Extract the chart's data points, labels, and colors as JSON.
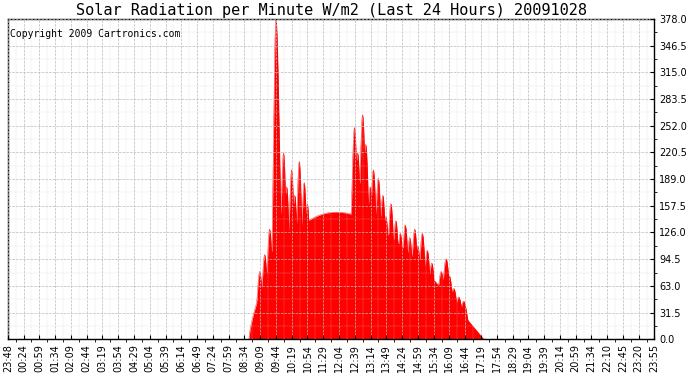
{
  "title": "Solar Radiation per Minute W/m2 (Last 24 Hours) 20091028",
  "copyright": "Copyright 2009 Cartronics.com",
  "fill_color": "#FF0000",
  "line_color": "#FF0000",
  "background_color": "#FFFFFF",
  "ymin": 0.0,
  "ymax": 378.0,
  "yticks": [
    0.0,
    31.5,
    63.0,
    94.5,
    126.0,
    157.5,
    189.0,
    220.5,
    252.0,
    283.5,
    315.0,
    346.5,
    378.0
  ],
  "x_labels": [
    "23:48",
    "00:24",
    "00:59",
    "01:34",
    "02:09",
    "02:44",
    "03:19",
    "03:54",
    "04:29",
    "05:04",
    "05:39",
    "06:14",
    "06:49",
    "07:24",
    "07:59",
    "08:34",
    "09:09",
    "09:44",
    "10:19",
    "10:54",
    "11:29",
    "12:04",
    "12:39",
    "13:14",
    "13:49",
    "14:24",
    "14:59",
    "15:34",
    "16:09",
    "16:44",
    "17:19",
    "17:54",
    "18:29",
    "19:04",
    "19:39",
    "20:14",
    "20:59",
    "21:34",
    "22:10",
    "22:45",
    "23:20",
    "23:55"
  ],
  "n_points": 1440,
  "baseline_dashed_color": "#FF0000",
  "title_fontsize": 11,
  "tick_fontsize": 7,
  "copyright_fontsize": 7,
  "figwidth": 6.9,
  "figheight": 3.75,
  "dpi": 100
}
